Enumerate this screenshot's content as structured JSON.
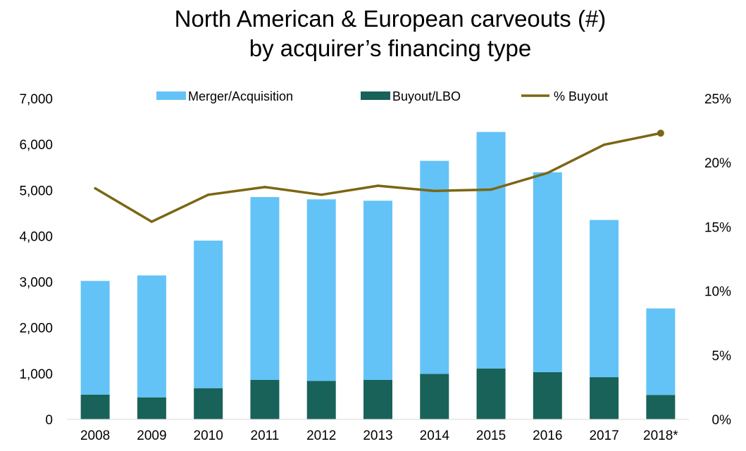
{
  "chart_data": {
    "type": "bar",
    "stacked": true,
    "title": [
      "North American & European carveouts (#)",
      "by acquirer’s financing type"
    ],
    "categories": [
      "2008",
      "2009",
      "2010",
      "2011",
      "2012",
      "2013",
      "2014",
      "2015",
      "2016",
      "2017",
      "2018*"
    ],
    "series": [
      {
        "name": "Buyout/LBO",
        "type": "bar",
        "axis": "left",
        "color": "#186259",
        "values": [
          540,
          480,
          680,
          860,
          840,
          860,
          990,
          1110,
          1030,
          920,
          530
        ]
      },
      {
        "name": "Merger/Acquisition",
        "type": "bar",
        "axis": "left",
        "color": "#63C3F7",
        "values": [
          2480,
          2660,
          3220,
          3990,
          3960,
          3910,
          4650,
          5160,
          4360,
          3430,
          1890
        ]
      },
      {
        "name": "% Buyout",
        "type": "line",
        "axis": "right",
        "color": "#7B6613",
        "values": [
          18.0,
          15.4,
          17.5,
          18.1,
          17.5,
          18.2,
          17.8,
          17.9,
          19.2,
          21.4,
          22.3
        ]
      }
    ],
    "legend_order": [
      "Merger/Acquisition",
      "Buyout/LBO",
      "% Buyout"
    ],
    "left_axis": {
      "ylim": [
        0,
        7000
      ],
      "ticks": [
        "0",
        "1,000",
        "2,000",
        "3,000",
        "4,000",
        "5,000",
        "6,000",
        "7,000"
      ]
    },
    "right_axis": {
      "ylim": [
        0,
        25
      ],
      "ticks": [
        "0%",
        "5%",
        "10%",
        "15%",
        "20%",
        "25%"
      ]
    },
    "legend_position": "top",
    "grid": false
  }
}
